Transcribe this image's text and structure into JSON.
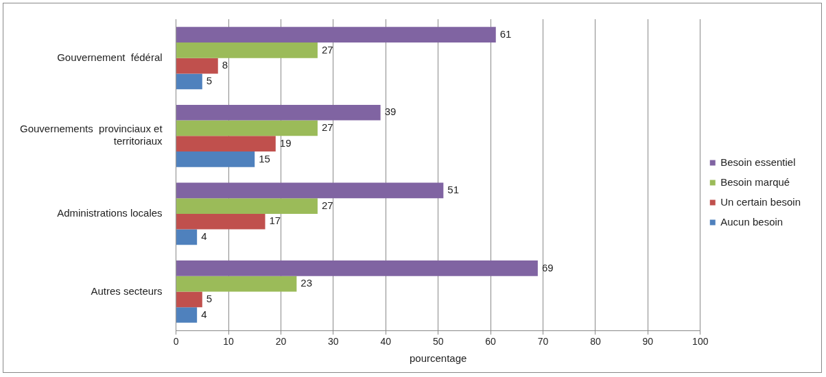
{
  "chart_data": {
    "type": "bar",
    "orientation": "horizontal",
    "xlabel": "pourcentage",
    "categories": [
      "Gouvernement  fédéral",
      "Gouvernements  provinciaux et territoriaux",
      "Administrations locales",
      "Autres secteurs"
    ],
    "series": [
      {
        "name": "Besoin essentiel",
        "color": "#8064a2",
        "values": [
          61,
          39,
          51,
          69
        ]
      },
      {
        "name": "Besoin marqué",
        "color": "#9bbb59",
        "values": [
          27,
          27,
          27,
          23
        ]
      },
      {
        "name": "Un certain besoin",
        "color": "#c0504d",
        "values": [
          8,
          19,
          17,
          5
        ]
      },
      {
        "name": "Aucun besoin",
        "color": "#4f81bd",
        "values": [
          5,
          15,
          4,
          4
        ]
      }
    ],
    "xlim": [
      0,
      100
    ],
    "xticks": [
      0,
      10,
      20,
      30,
      40,
      50,
      60,
      70,
      80,
      90,
      100
    ],
    "grid": "x",
    "legend": "right",
    "data_labels": true
  }
}
